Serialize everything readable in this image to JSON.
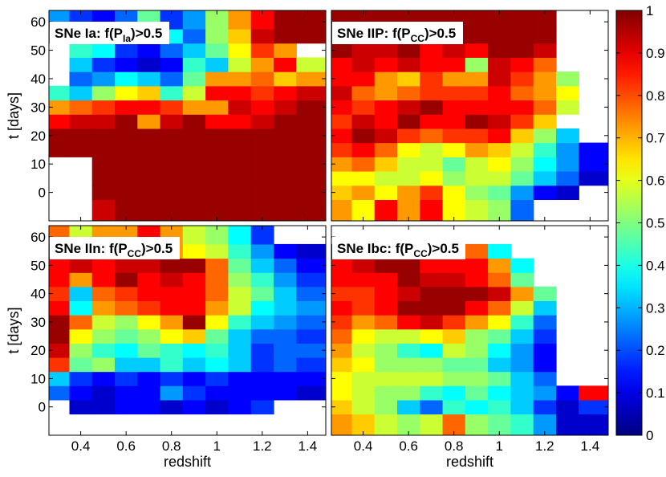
{
  "chart_data": [
    {
      "type": "heatmap",
      "title_prefix": "SNe Ia: f(P",
      "title_sub": "Ia",
      "title_suffix": ")>0.5",
      "xlabel": "",
      "ylabel": "t [days]",
      "xlim": [
        0.26,
        1.48
      ],
      "ylim": [
        -10,
        64
      ],
      "x": [
        0.3,
        0.4,
        0.5,
        0.6,
        0.7,
        0.8,
        0.9,
        1.0,
        1.1,
        1.2,
        1.3,
        1.4
      ],
      "y": [
        -5,
        0,
        5,
        10,
        15,
        20,
        25,
        30,
        35,
        40,
        45,
        50,
        55,
        60
      ],
      "z": [
        [
          null,
          null,
          0.93,
          0.96,
          0.97,
          0.98,
          0.97,
          0.96,
          0.96,
          0.96,
          0.96,
          0.97
        ],
        [
          null,
          null,
          0.98,
          1.0,
          1.0,
          1.0,
          1.0,
          1.0,
          1.0,
          1.0,
          0.98,
          0.97
        ],
        [
          null,
          null,
          1.0,
          1.0,
          1.0,
          1.0,
          1.0,
          1.0,
          1.0,
          1.0,
          1.0,
          1.0
        ],
        [
          null,
          null,
          1.0,
          1.0,
          1.0,
          1.0,
          1.0,
          1.0,
          1.0,
          1.0,
          1.0,
          1.0
        ],
        [
          1.0,
          1.0,
          1.0,
          1.0,
          1.0,
          1.0,
          1.0,
          1.0,
          1.0,
          1.0,
          1.0,
          1.0
        ],
        [
          0.95,
          0.98,
          1.0,
          1.0,
          1.0,
          0.97,
          1.0,
          1.0,
          1.0,
          1.0,
          0.98,
          1.0
        ],
        [
          0.88,
          0.9,
          0.92,
          0.95,
          0.72,
          0.9,
          0.98,
          0.88,
          0.88,
          0.92,
          0.95,
          1.0
        ],
        [
          0.72,
          0.78,
          0.82,
          0.87,
          0.88,
          0.82,
          0.7,
          0.74,
          0.9,
          0.85,
          0.9,
          0.97
        ],
        [
          0.4,
          0.3,
          0.5,
          0.6,
          0.65,
          0.4,
          0.55,
          0.85,
          0.85,
          0.8,
          0.88,
          0.9
        ],
        [
          null,
          0.22,
          0.25,
          0.35,
          0.3,
          0.2,
          0.45,
          0.7,
          0.72,
          0.75,
          0.65,
          0.7
        ],
        [
          null,
          0.3,
          0.18,
          0.1,
          0.05,
          0.12,
          0.4,
          0.3,
          0.55,
          0.72,
          0.85,
          0.55
        ],
        [
          null,
          0.42,
          0.35,
          0.18,
          0.1,
          0.2,
          0.3,
          0.45,
          0.6,
          0.8,
          0.7,
          null
        ],
        [
          0.3,
          0.25,
          0.35,
          0.22,
          0.35,
          0.35,
          0.2,
          0.5,
          0.65,
          0.9,
          1.0,
          0.95
        ],
        [
          0.25,
          0.18,
          0.1,
          0.2,
          0.45,
          0.15,
          0.25,
          0.5,
          0.7,
          0.85,
          1.0,
          0.95
        ]
      ]
    },
    {
      "type": "heatmap",
      "title_prefix": "SNe IIP: f(P",
      "title_sub": "CC",
      "title_suffix": ")>0.5",
      "xlabel": "",
      "ylabel": "",
      "xlim": [
        0.26,
        1.48
      ],
      "ylim": [
        -10,
        64
      ],
      "x": [
        0.3,
        0.4,
        0.5,
        0.6,
        0.7,
        0.8,
        0.9,
        1.0,
        1.1,
        1.2,
        1.3,
        1.4
      ],
      "y": [
        -5,
        0,
        5,
        10,
        15,
        20,
        25,
        30,
        35,
        40,
        45,
        50,
        55,
        60
      ],
      "z": [
        [
          0.7,
          0.6,
          0.85,
          0.7,
          0.85,
          0.6,
          0.55,
          0.5,
          0.2,
          null,
          null,
          null
        ],
        [
          0.65,
          0.72,
          0.6,
          0.72,
          0.8,
          0.6,
          0.5,
          0.45,
          0.25,
          0.12,
          0.05,
          null
        ],
        [
          0.6,
          0.6,
          0.55,
          0.55,
          0.6,
          0.5,
          0.55,
          0.55,
          0.45,
          0.3,
          0.2,
          0.05
        ],
        [
          0.72,
          0.75,
          0.65,
          0.55,
          0.55,
          0.45,
          0.55,
          0.6,
          0.5,
          0.35,
          0.25,
          0.1
        ],
        [
          0.8,
          0.85,
          0.75,
          0.6,
          0.55,
          0.6,
          0.7,
          0.65,
          0.55,
          0.4,
          0.25,
          0.1
        ],
        [
          0.88,
          0.97,
          0.9,
          0.82,
          0.75,
          0.8,
          0.8,
          0.85,
          0.65,
          0.5,
          0.3,
          null
        ],
        [
          0.8,
          0.9,
          0.88,
          0.98,
          0.85,
          0.85,
          0.95,
          0.9,
          0.8,
          0.65,
          null,
          null
        ],
        [
          0.85,
          0.82,
          0.85,
          0.92,
          1.0,
          0.88,
          0.85,
          0.88,
          0.85,
          0.75,
          0.55,
          null
        ],
        [
          0.9,
          0.75,
          0.7,
          0.75,
          0.8,
          0.8,
          0.8,
          0.85,
          0.75,
          0.7,
          0.6,
          null
        ],
        [
          0.88,
          0.85,
          0.72,
          0.65,
          0.82,
          0.7,
          0.72,
          0.9,
          0.8,
          0.7,
          0.5,
          null
        ],
        [
          0.85,
          0.9,
          0.88,
          0.9,
          0.85,
          0.88,
          0.5,
          0.9,
          0.85,
          0.75,
          null,
          null
        ],
        [
          0.95,
          0.9,
          0.92,
          0.95,
          0.85,
          0.9,
          0.85,
          1.0,
          0.95,
          0.9,
          null,
          null
        ],
        [
          1.0,
          1.0,
          0.95,
          1.0,
          1.0,
          1.0,
          1.0,
          1.0,
          1.0,
          1.0,
          null,
          null
        ],
        [
          1.0,
          1.0,
          1.0,
          1.0,
          1.0,
          1.0,
          1.0,
          1.0,
          1.0,
          1.0,
          null,
          null
        ]
      ]
    },
    {
      "type": "heatmap",
      "title_prefix": "SNe IIn: f(P",
      "title_sub": "CC",
      "title_suffix": ")>0.5",
      "xlabel": "redshift",
      "ylabel": "t [days]",
      "xlim": [
        0.26,
        1.48
      ],
      "ylim": [
        -10,
        64
      ],
      "x": [
        0.3,
        0.4,
        0.5,
        0.6,
        0.7,
        0.8,
        0.9,
        1.0,
        1.1,
        1.2,
        1.3,
        1.4
      ],
      "y": [
        -5,
        0,
        5,
        10,
        15,
        20,
        25,
        30,
        35,
        40,
        45,
        50,
        55,
        60
      ],
      "z": [
        [
          null,
          null,
          null,
          null,
          null,
          null,
          null,
          null,
          null,
          null,
          null,
          null
        ],
        [
          null,
          0.05,
          0.05,
          0.1,
          0.1,
          0.05,
          0.1,
          0.05,
          0.1,
          0.15,
          null,
          null
        ],
        [
          0.2,
          0.1,
          0.08,
          0.1,
          0.1,
          0.25,
          0.15,
          0.1,
          0.1,
          0.12,
          0.1,
          0.05
        ],
        [
          0.3,
          0.15,
          0.1,
          0.15,
          0.1,
          0.15,
          0.1,
          0.15,
          0.12,
          0.1,
          0.1,
          0.1
        ],
        [
          0.8,
          0.45,
          0.5,
          0.3,
          0.3,
          0.4,
          0.3,
          0.35,
          0.3,
          0.15,
          0.2,
          0.15
        ],
        [
          0.9,
          0.5,
          0.4,
          0.35,
          0.45,
          0.4,
          0.35,
          0.4,
          0.3,
          0.15,
          0.2,
          0.2
        ],
        [
          0.98,
          0.6,
          0.5,
          0.45,
          0.5,
          0.6,
          0.65,
          0.45,
          0.3,
          0.2,
          0.2,
          0.15
        ],
        [
          0.95,
          0.75,
          0.55,
          0.5,
          0.6,
          0.72,
          0.98,
          0.6,
          0.4,
          0.3,
          0.25,
          0.2
        ],
        [
          0.85,
          0.35,
          0.7,
          0.75,
          0.8,
          0.85,
          0.85,
          0.7,
          0.55,
          0.35,
          0.3,
          0.25
        ],
        [
          0.8,
          0.3,
          0.75,
          0.82,
          0.85,
          0.88,
          0.85,
          0.75,
          0.55,
          0.45,
          0.3,
          0.2
        ],
        [
          0.85,
          0.7,
          0.88,
          0.95,
          0.85,
          0.9,
          0.88,
          0.75,
          0.5,
          0.4,
          0.25,
          0.15
        ],
        [
          0.88,
          0.92,
          0.85,
          0.9,
          0.9,
          0.95,
          0.95,
          0.75,
          0.45,
          0.3,
          0.2,
          0.1
        ],
        [
          0.8,
          0.75,
          0.65,
          0.8,
          0.85,
          0.7,
          0.6,
          0.55,
          0.4,
          0.25,
          0.1,
          0.05
        ],
        [
          0.75,
          0.55,
          0.7,
          0.7,
          0.85,
          0.7,
          0.55,
          0.5,
          0.35,
          0.15,
          null,
          null
        ]
      ]
    },
    {
      "type": "heatmap",
      "title_prefix": "SNe Ibc: f(P",
      "title_sub": "CC",
      "title_suffix": ")>0.5",
      "xlabel": "redshift",
      "ylabel": "",
      "xlim": [
        0.26,
        1.48
      ],
      "ylim": [
        -10,
        64
      ],
      "x": [
        0.3,
        0.4,
        0.5,
        0.6,
        0.7,
        0.8,
        0.9,
        1.0,
        1.1,
        1.2,
        1.3,
        1.4
      ],
      "y": [
        -5,
        0,
        5,
        10,
        15,
        20,
        25,
        30,
        35,
        40,
        45,
        50,
        55,
        60
      ],
      "z": [
        [
          0.7,
          0.65,
          0.55,
          0.5,
          0.55,
          0.75,
          0.5,
          0.45,
          0.4,
          0.25,
          0.05,
          0.05
        ],
        [
          0.65,
          0.55,
          0.5,
          0.3,
          0.2,
          0.4,
          0.35,
          0.4,
          0.3,
          0.15,
          0.05,
          0.15
        ],
        [
          0.6,
          0.55,
          0.5,
          0.5,
          0.4,
          0.35,
          0.45,
          0.35,
          0.3,
          0.25,
          0.1,
          0.85
        ],
        [
          0.62,
          0.55,
          0.55,
          0.55,
          0.55,
          0.5,
          0.5,
          0.45,
          0.3,
          0.2,
          null,
          null
        ],
        [
          0.65,
          0.6,
          0.5,
          0.5,
          0.5,
          0.45,
          0.45,
          0.3,
          0.25,
          0.1,
          null,
          null
        ],
        [
          0.7,
          0.58,
          0.5,
          0.4,
          0.35,
          0.55,
          0.5,
          0.35,
          0.25,
          0.1,
          null,
          null
        ],
        [
          0.75,
          0.6,
          0.55,
          0.55,
          0.6,
          0.65,
          0.5,
          0.45,
          0.3,
          0.15,
          null,
          null
        ],
        [
          0.8,
          0.7,
          0.75,
          0.85,
          0.9,
          0.8,
          0.7,
          0.6,
          0.4,
          0.2,
          null,
          null
        ],
        [
          0.85,
          0.8,
          0.88,
          0.95,
          0.98,
          0.95,
          0.85,
          0.75,
          0.55,
          0.3,
          null,
          null
        ],
        [
          0.82,
          0.8,
          0.85,
          0.9,
          0.95,
          1.0,
          0.98,
          0.9,
          0.72,
          0.45,
          null,
          null
        ],
        [
          0.85,
          0.85,
          0.88,
          0.95,
          0.9,
          0.9,
          0.85,
          0.75,
          0.45,
          null,
          null,
          null
        ],
        [
          0.88,
          0.9,
          1.0,
          0.95,
          0.85,
          0.85,
          0.85,
          0.7,
          0.35,
          null,
          null,
          null
        ],
        [
          0.95,
          0.95,
          1.0,
          0.95,
          0.9,
          0.88,
          0.75,
          0.35,
          null,
          null,
          null,
          null
        ],
        [
          null,
          null,
          null,
          null,
          null,
          null,
          null,
          null,
          null,
          null,
          null,
          null
        ]
      ]
    }
  ],
  "colorbar": {
    "ticks": [
      "0",
      "0.1",
      "0.2",
      "0.3",
      "0.4",
      "0.5",
      "0.6",
      "0.7",
      "0.8",
      "0.9",
      "1"
    ],
    "range": [
      0,
      1
    ],
    "colormap": "jet"
  },
  "axes": {
    "xticks": [
      "0.4",
      "0.6",
      "0.8",
      "1",
      "1.2",
      "1.4"
    ],
    "xtick_values": [
      0.4,
      0.6,
      0.8,
      1.0,
      1.2,
      1.4
    ],
    "yticks": [
      "0",
      "10",
      "20",
      "30",
      "40",
      "50",
      "60"
    ],
    "ytick_values": [
      0,
      10,
      20,
      30,
      40,
      50,
      60
    ]
  }
}
